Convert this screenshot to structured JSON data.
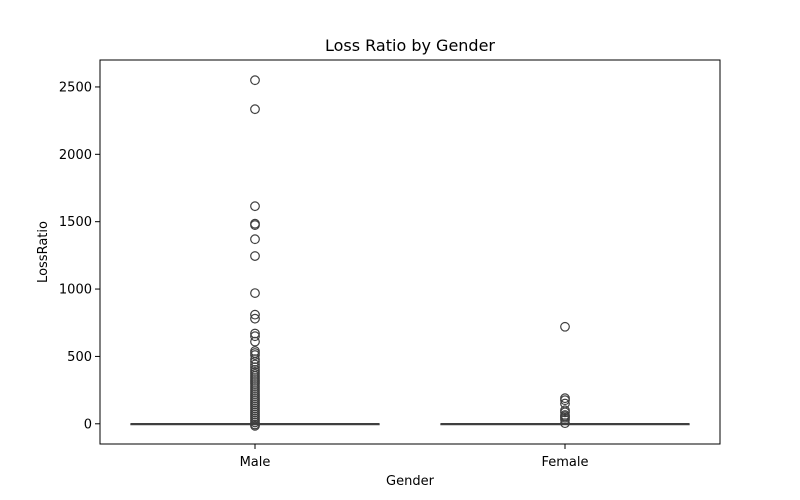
{
  "chart_data": {
    "type": "box",
    "title": "Loss Ratio by Gender",
    "xlabel": "Gender",
    "ylabel": "LossRatio",
    "categories": [
      "Male",
      "Female"
    ],
    "ylim": [
      -150,
      2700
    ],
    "yticks": [
      0,
      500,
      1000,
      1500,
      2000,
      2500
    ],
    "grid": false,
    "boxes": [
      {
        "category": "Male",
        "q1": 0,
        "median": 0,
        "q3": 0,
        "whisker_low": 0,
        "whisker_high": 0,
        "outliers": [
          2550,
          2335,
          1615,
          1485,
          1475,
          1370,
          1245,
          970,
          810,
          780,
          670,
          650,
          610,
          540,
          525,
          510,
          480,
          460,
          440,
          420,
          400,
          385,
          370,
          355,
          340,
          325,
          310,
          295,
          280,
          265,
          250,
          235,
          220,
          205,
          190,
          175,
          160,
          145,
          130,
          115,
          100,
          85,
          70,
          55,
          40,
          25,
          10,
          -5,
          -15
        ]
      },
      {
        "category": "Female",
        "q1": 0,
        "median": 0,
        "q3": 0,
        "whisker_low": 0,
        "whisker_high": 0,
        "outliers": [
          720,
          190,
          175,
          150,
          100,
          85,
          65,
          55,
          45,
          30,
          5
        ]
      }
    ],
    "colors": {
      "box_edge": "#3f3f3f",
      "marker_edge": "#3f3f3f"
    }
  }
}
